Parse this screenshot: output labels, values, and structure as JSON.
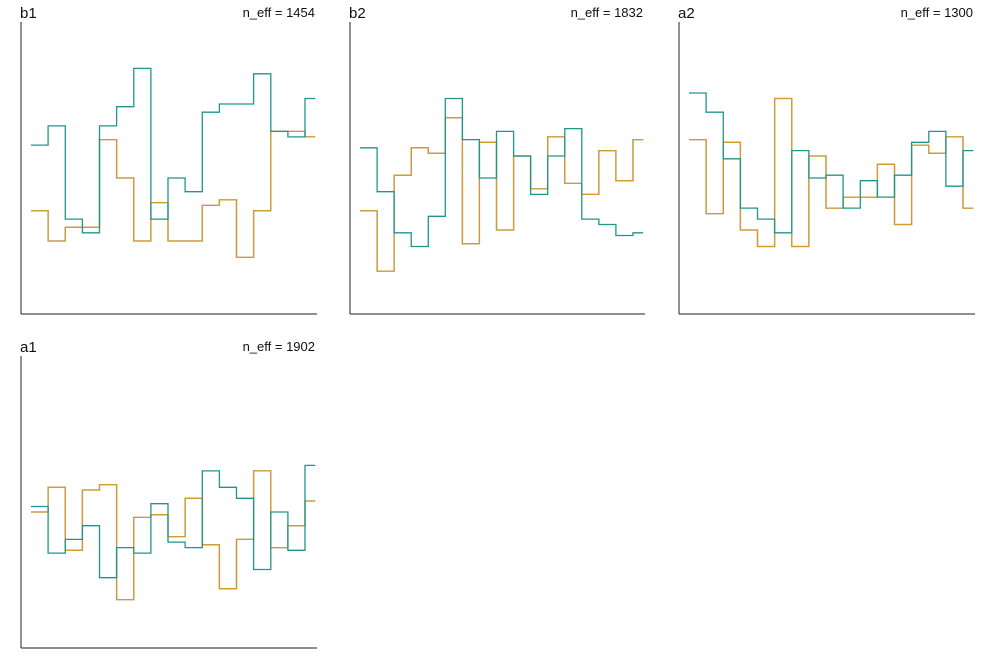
{
  "colors": {
    "chain_1": "#8e86b5",
    "chain_2": "#d39b2a",
    "chain_3": "#1e968c",
    "axis": "#222222",
    "background": "#ffffff"
  },
  "chart_data": [
    {
      "type": "line",
      "style": "step trace plot",
      "title": "b1",
      "annotation": "n_eff = 1454",
      "xlim": [
        0,
        16
      ],
      "ylim": [
        0,
        10
      ],
      "series": [
        {
          "values": [
            3.4,
            2.3,
            2.8,
            2.8,
            6.0,
            4.6,
            2.3,
            3.7,
            2.3,
            2.3,
            3.6,
            3.8,
            1.7,
            3.4,
            6.3,
            6.3,
            6.1
          ]
        },
        {
          "values": [
            3.4,
            2.3,
            2.8,
            2.8,
            6.0,
            4.6,
            2.3,
            3.7,
            2.3,
            2.3,
            3.6,
            3.8,
            1.7,
            3.4,
            6.3,
            6.3,
            6.1
          ]
        },
        {
          "values": [
            5.8,
            6.5,
            3.1,
            2.6,
            6.5,
            7.2,
            8.6,
            3.1,
            4.6,
            4.1,
            7.0,
            7.3,
            7.3,
            8.4,
            6.3,
            6.1,
            7.5
          ]
        }
      ]
    },
    {
      "type": "line",
      "style": "step trace plot",
      "title": "b2",
      "annotation": "n_eff = 1832",
      "xlim": [
        0,
        16
      ],
      "ylim": [
        0,
        10
      ],
      "series": [
        {
          "values": [
            3.4,
            1.2,
            4.7,
            5.7,
            5.5,
            6.8,
            2.2,
            5.9,
            2.7,
            5.4,
            4.2,
            6.1,
            4.4,
            4.0,
            5.6,
            4.5,
            6.0
          ]
        },
        {
          "values": [
            3.4,
            1.2,
            4.7,
            5.7,
            5.5,
            6.8,
            2.2,
            5.9,
            2.7,
            5.4,
            4.2,
            6.1,
            4.4,
            4.0,
            5.6,
            4.5,
            6.0
          ]
        },
        {
          "values": [
            5.7,
            4.1,
            2.6,
            2.1,
            3.2,
            7.5,
            6.0,
            4.6,
            6.3,
            5.4,
            4.0,
            5.4,
            6.4,
            3.1,
            2.9,
            2.5,
            2.6
          ]
        }
      ]
    },
    {
      "type": "line",
      "style": "step trace plot",
      "title": "a2",
      "annotation": "n_eff = 1300",
      "xlim": [
        0,
        16
      ],
      "ylim": [
        0,
        10
      ],
      "series": [
        {
          "values": [
            6.0,
            3.3,
            5.9,
            2.7,
            2.1,
            7.5,
            2.1,
            5.4,
            3.5,
            3.9,
            3.9,
            5.1,
            2.9,
            5.8,
            5.5,
            6.1,
            3.5
          ]
        },
        {
          "values": [
            6.0,
            3.3,
            5.9,
            2.7,
            2.1,
            7.5,
            2.1,
            5.4,
            3.5,
            3.9,
            3.9,
            5.1,
            2.9,
            5.8,
            5.5,
            6.1,
            3.5
          ]
        },
        {
          "values": [
            7.7,
            7.0,
            5.3,
            3.5,
            3.1,
            2.6,
            5.6,
            4.6,
            4.7,
            3.5,
            4.5,
            3.9,
            4.7,
            5.9,
            6.3,
            4.3,
            5.6
          ]
        }
      ]
    },
    {
      "type": "line",
      "style": "step trace plot",
      "title": "a1",
      "annotation": "n_eff = 1902",
      "xlim": [
        0,
        16
      ],
      "ylim": [
        0,
        10
      ],
      "series": [
        {
          "values": [
            4.6,
            5.5,
            3.2,
            5.4,
            5.6,
            1.4,
            4.4,
            4.5,
            3.7,
            5.1,
            3.4,
            1.8,
            3.6,
            6.1,
            3.3,
            4.1,
            5.0
          ]
        },
        {
          "values": [
            4.6,
            5.5,
            3.2,
            5.4,
            5.6,
            1.4,
            4.4,
            4.5,
            3.7,
            5.1,
            3.4,
            1.8,
            3.6,
            6.1,
            3.3,
            4.1,
            5.0
          ]
        },
        {
          "values": [
            4.8,
            3.1,
            3.6,
            4.1,
            2.2,
            3.3,
            3.1,
            4.9,
            3.5,
            3.3,
            6.1,
            5.5,
            5.1,
            2.5,
            4.6,
            3.2,
            6.3
          ]
        }
      ]
    }
  ]
}
